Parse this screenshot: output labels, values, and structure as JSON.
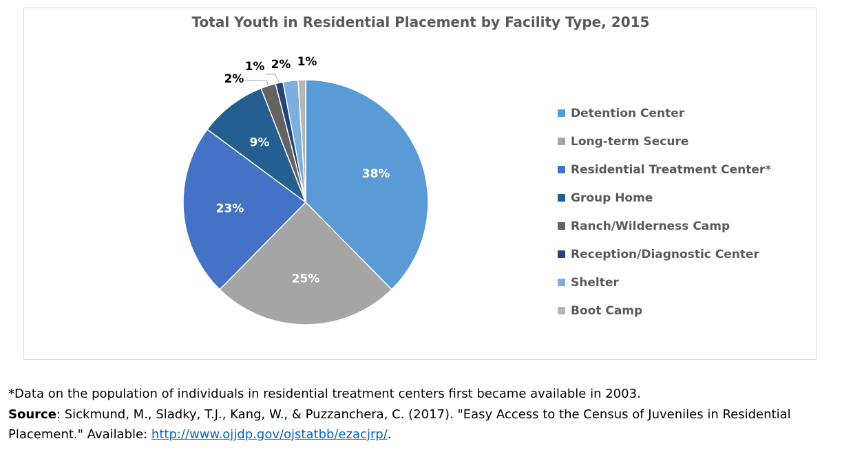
{
  "chart_data": {
    "type": "pie",
    "title": "Total Youth in Residential Placement by Facility Type, 2015",
    "slices": [
      {
        "label": "Detention Center",
        "value": 38,
        "display": "38%",
        "color": "#5b9bd5"
      },
      {
        "label": "Long-term Secure",
        "value": 25,
        "display": "25%",
        "color": "#a5a5a5"
      },
      {
        "label": "Residential Treatment Center*",
        "value": 23,
        "display": "23%",
        "color": "#4472c4"
      },
      {
        "label": "Group Home",
        "value": 9,
        "display": "9%",
        "color": "#255e91"
      },
      {
        "label": "Ranch/Wilderness Camp",
        "value": 2,
        "display": "2%",
        "color": "#636363"
      },
      {
        "label": "Reception/Diagnostic Center",
        "value": 1,
        "display": "1%",
        "color": "#264478"
      },
      {
        "label": "Shelter",
        "value": 2,
        "display": "2%",
        "color": "#7cafdd"
      },
      {
        "label": "Boot Camp",
        "value": 1,
        "display": "1%",
        "color": "#b7b7b7"
      }
    ],
    "legend_position": "right"
  },
  "notes": {
    "footnote": "*Data on the population of individuals in residential treatment centers first became available in 2003.",
    "source_label": "Source",
    "source_text": ": Sickmund, M., Sladky, T.J., Kang, W., & Puzzanchera, C. (2017). \"Easy Access to the Census of Juveniles in Residential Placement.\" Available: ",
    "source_link": "http://www.ojjdp.gov/ojstatbb/ezacjrp/",
    "source_end": "."
  }
}
